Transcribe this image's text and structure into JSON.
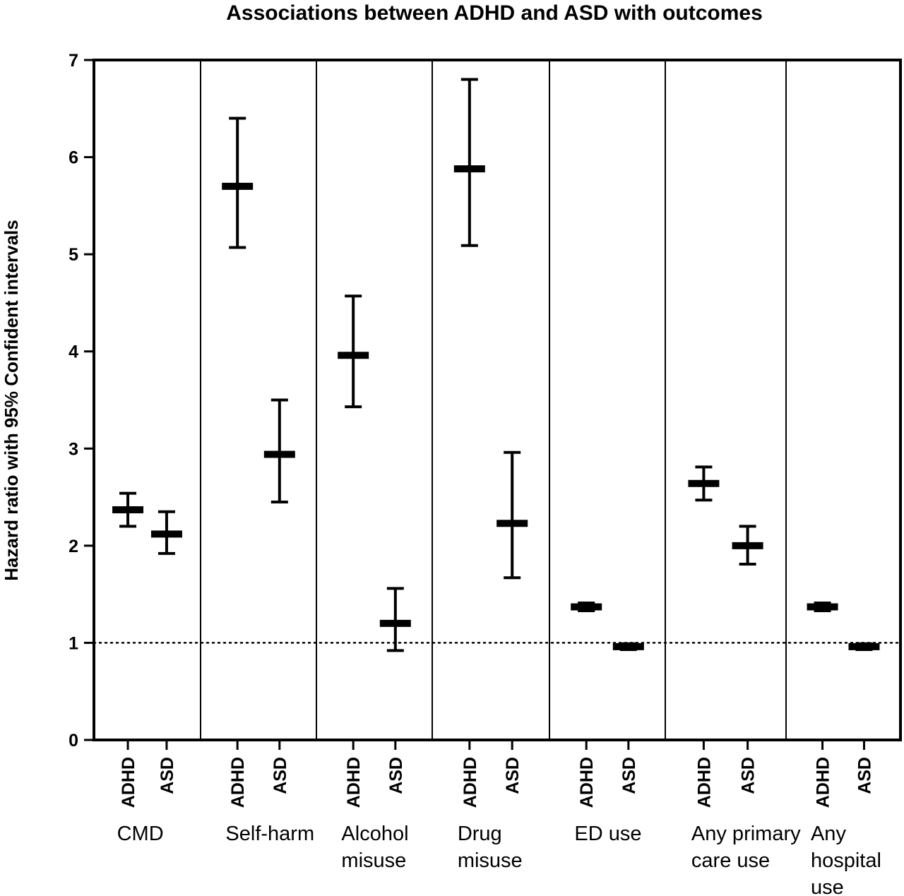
{
  "chart_data": {
    "type": "errorbar",
    "title": "Associations between ADHD and ASD with outcomes",
    "ylabel": "Hazard ratio with 95% Confident intervals",
    "xlabel": "",
    "ylim": [
      0,
      7
    ],
    "yticks": [
      0,
      1,
      2,
      3,
      4,
      5,
      6,
      7
    ],
    "reference_line": 1,
    "reference_line_style": "dotted",
    "grid": false,
    "legend": "none",
    "series_labels": [
      "ADHD",
      "ASD"
    ],
    "groups": [
      {
        "label_lines": [
          "CMD"
        ],
        "points": [
          {
            "label": "ADHD",
            "value": 2.37,
            "lower": 2.2,
            "upper": 2.54
          },
          {
            "label": "ASD",
            "value": 2.12,
            "lower": 1.92,
            "upper": 2.35
          }
        ]
      },
      {
        "label_lines": [
          "Self-harm"
        ],
        "points": [
          {
            "label": "ADHD",
            "value": 5.7,
            "lower": 5.07,
            "upper": 6.4
          },
          {
            "label": "ASD",
            "value": 2.94,
            "lower": 2.45,
            "upper": 3.5
          }
        ]
      },
      {
        "label_lines": [
          "Alcohol",
          "misuse"
        ],
        "points": [
          {
            "label": "ADHD",
            "value": 3.96,
            "lower": 3.43,
            "upper": 4.57
          },
          {
            "label": "ASD",
            "value": 1.2,
            "lower": 0.92,
            "upper": 1.56
          }
        ]
      },
      {
        "label_lines": [
          "Drug",
          "misuse"
        ],
        "points": [
          {
            "label": "ADHD",
            "value": 5.88,
            "lower": 5.09,
            "upper": 6.8
          },
          {
            "label": "ASD",
            "value": 2.23,
            "lower": 1.67,
            "upper": 2.96
          }
        ]
      },
      {
        "label_lines": [
          "ED use"
        ],
        "points": [
          {
            "label": "ADHD",
            "value": 1.37,
            "lower": 1.33,
            "upper": 1.41
          },
          {
            "label": "ASD",
            "value": 0.96,
            "lower": 0.93,
            "upper": 0.99
          }
        ]
      },
      {
        "label_lines": [
          "Any primary",
          "care use"
        ],
        "points": [
          {
            "label": "ADHD",
            "value": 2.64,
            "lower": 2.47,
            "upper": 2.81
          },
          {
            "label": "ASD",
            "value": 2.0,
            "lower": 1.81,
            "upper": 2.2
          }
        ]
      },
      {
        "label_lines": [
          "Any",
          "hospital",
          "use"
        ],
        "points": [
          {
            "label": "ADHD",
            "value": 1.37,
            "lower": 1.33,
            "upper": 1.41
          },
          {
            "label": "ASD",
            "value": 0.96,
            "lower": 0.93,
            "upper": 0.99
          }
        ]
      }
    ]
  }
}
